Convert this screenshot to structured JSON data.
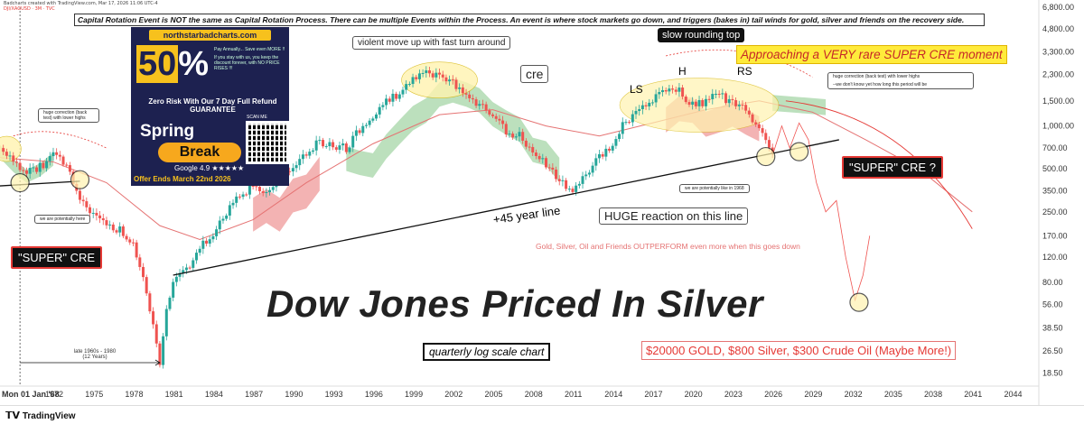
{
  "header": {
    "line1": "Badcharts created with TradingView.com, Mar 17, 2026 11:06 UTC-4",
    "line2": "DJI/XAGUSD · 3M · TVC"
  },
  "banner": "Capital Rotation Event is NOT the same as Capital Rotation Process. There can be multiple Events within the Process. An event is where stock markets go down, and triggers (bakes in) tail winds for gold, silver and friends on the recovery side.",
  "ad": {
    "url": "northstarbadcharts.com",
    "pct_digits": "50",
    "pct_sign": "%",
    "pay_line1": "Pay Annually... Save even MORE !!",
    "pay_line2": "If you stay with us, you keep the discount forever, with NO PRICE RISES !!!",
    "zero_risk": "Zero Risk With Our 7 Day Full Refund GUARANTEE",
    "spring": "Spring",
    "break": "Break",
    "google": "Google 4.9 ★★★★★",
    "scan": "SCAN ME",
    "offer": "Offer Ends March 22nd 2026"
  },
  "annotations": {
    "violent": "violent move up with fast turn around",
    "cre": "cre",
    "slow_top": "slow rounding top",
    "rare": "Approaching a VERY rare SUPER CRE moment",
    "ls": "LS",
    "h": "H",
    "rs": "RS",
    "huge_corr_right": "huge correction (back test) with lower highs",
    "dont_know": "--we don't know yet how long this period will be",
    "huge_corr_left": "huge correction (back test) with lower highs",
    "potentially_here": "we are potentially here",
    "like_1968": "we are potentially like in 1968",
    "super_cre_left": "\"SUPER\" CRE",
    "super_cre_right": "\"SUPER\" CRE ?",
    "line_45": "+45 year line",
    "huge_reaction": "HUGE reaction on this line",
    "gold_outperform": "Gold, Silver, Oil and Friends OUTPERFORM even more when this goes down",
    "late60s": "late 1960s - 1980",
    "twelve_years": "(12 Years)",
    "title": "Dow Jones Priced In Silver",
    "log_scale": "quarterly log scale chart",
    "targets": "$20000 GOLD, $800 Silver, $300 Crude Oil (Maybe More!)"
  },
  "footer": {
    "brand": "TradingView"
  },
  "colors": {
    "up": "#26a69a",
    "down": "#ef5350",
    "cloud_green": "#a5d6a7",
    "cloud_red": "#ef9a9a",
    "ma": "#e57373",
    "highlight": "#fff3b0"
  },
  "chart_data": {
    "type": "candlestick",
    "scale": "log",
    "ylim": [
      15,
      6800
    ],
    "y_ticks": [
      "6,800.00",
      "4,800.00",
      "3,300.00",
      "2,300.00",
      "1,500.00",
      "1,000.00",
      "700.00",
      "500.00",
      "350.00",
      "250.00",
      "170.00",
      "120.00",
      "80.00",
      "56.00",
      "38.50",
      "26.50",
      "18.50"
    ],
    "x_ticks": [
      "Mon 01 Jan '68",
      "1972",
      "1975",
      "1978",
      "1981",
      "1984",
      "1987",
      "1990",
      "1993",
      "1996",
      "1999",
      "2002",
      "2005",
      "2008",
      "2011",
      "2014",
      "2017",
      "2020",
      "2023",
      "2026",
      "2029",
      "2032",
      "2035",
      "2038",
      "2041",
      "2044"
    ],
    "price_path": [
      [
        1968,
        700
      ],
      [
        1969,
        560
      ],
      [
        1970,
        470
      ],
      [
        1971,
        520
      ],
      [
        1972,
        620
      ],
      [
        1973,
        560
      ],
      [
        1974,
        300
      ],
      [
        1975,
        230
      ],
      [
        1976,
        200
      ],
      [
        1977,
        190
      ],
      [
        1978,
        150
      ],
      [
        1979,
        70
      ],
      [
        1980,
        22
      ],
      [
        1980.6,
        60
      ],
      [
        1981,
        80
      ],
      [
        1982,
        100
      ],
      [
        1983,
        140
      ],
      [
        1984,
        170
      ],
      [
        1985,
        250
      ],
      [
        1986,
        330
      ],
      [
        1987,
        380
      ],
      [
        1988,
        330
      ],
      [
        1989,
        450
      ],
      [
        1990,
        480
      ],
      [
        1991,
        640
      ],
      [
        1992,
        780
      ],
      [
        1993,
        730
      ],
      [
        1994,
        700
      ],
      [
        1995,
        950
      ],
      [
        1996,
        1200
      ],
      [
        1997,
        1500
      ],
      [
        1998,
        1700
      ],
      [
        1999,
        2200
      ],
      [
        2000,
        2350
      ],
      [
        2001,
        2200
      ],
      [
        2002,
        2000
      ],
      [
        2003,
        1600
      ],
      [
        2004,
        1400
      ],
      [
        2005,
        1250
      ],
      [
        2006,
        900
      ],
      [
        2007,
        850
      ],
      [
        2008,
        650
      ],
      [
        2009,
        550
      ],
      [
        2010,
        400
      ],
      [
        2011,
        360
      ],
      [
        2012,
        450
      ],
      [
        2013,
        600
      ],
      [
        2014,
        750
      ],
      [
        2015,
        1100
      ],
      [
        2016,
        1250
      ],
      [
        2017,
        1500
      ],
      [
        2018,
        1800
      ],
      [
        2019,
        1750
      ],
      [
        2020,
        1400
      ],
      [
        2021,
        1500
      ],
      [
        2022,
        1650
      ],
      [
        2023,
        1450
      ],
      [
        2024,
        1300
      ],
      [
        2025,
        1000
      ],
      [
        2026,
        620
      ]
    ]
  }
}
